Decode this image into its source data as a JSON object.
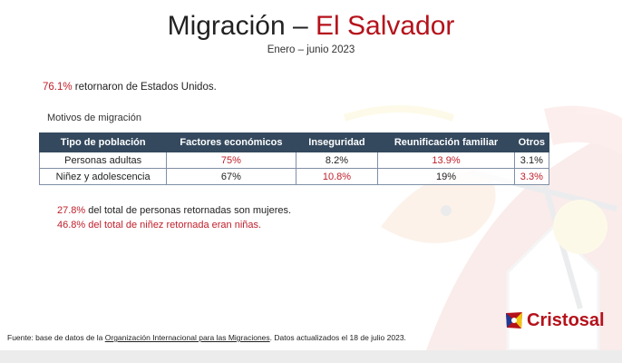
{
  "title": {
    "main": "Migración –",
    "accent": "El Salvador"
  },
  "subtitle": "Enero – junio 2023",
  "highlight": {
    "value": "76.1%",
    "text": " retornaron de Estados Unidos."
  },
  "section_label": "Motivos de migración",
  "table": {
    "headers": [
      "Tipo de población",
      "Factores económicos",
      "Inseguridad",
      "Reunificación familiar",
      "Otros"
    ],
    "rows": [
      [
        "Personas adultas",
        "75%",
        "8.2%",
        "13.9%",
        "3.1%"
      ],
      [
        "Niñez y adolescencia",
        "67%",
        "10.8%",
        "19%",
        "3.3%"
      ]
    ],
    "highlight_color": "#c0202b"
  },
  "footnotes": [
    {
      "value": "27.8%",
      "text": " del total de personas retornadas son mujeres."
    },
    {
      "value": "46.8%",
      "text": " del total de niñez retornada eran niñas."
    }
  ],
  "source": {
    "prefix": "Fuente: base de datos de la ",
    "link": "Organización Internacional para las Migraciones",
    "suffix": ". Datos actualizados el 18 de julio 2023."
  },
  "logo": {
    "text": "Cristosal",
    "icon": "cristosal-flag-icon"
  },
  "colors": {
    "accent": "#b5121b",
    "header_bg": "#34495e"
  }
}
